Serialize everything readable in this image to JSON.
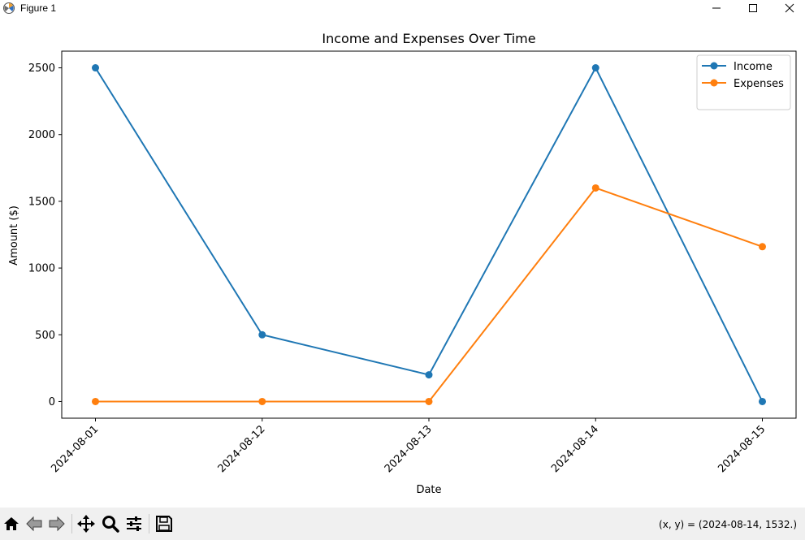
{
  "window": {
    "title": "Figure 1"
  },
  "chart_data": {
    "type": "line",
    "title": "Income and Expenses Over Time",
    "xlabel": "Date",
    "ylabel": "Amount ($)",
    "categories": [
      "2024-08-01",
      "2024-08-12",
      "2024-08-13",
      "2024-08-14",
      "2024-08-15"
    ],
    "series": [
      {
        "name": "Income",
        "values": [
          2500,
          500,
          200,
          2500,
          0
        ],
        "color": "#1f77b4",
        "marker": "circle"
      },
      {
        "name": "Expenses",
        "values": [
          0,
          0,
          0,
          1600,
          1160
        ],
        "color": "#ff7f0e",
        "marker": "circle"
      }
    ],
    "y_ticks": [
      0,
      500,
      1000,
      1500,
      2000,
      2500
    ],
    "ylim": [
      -125,
      2625
    ],
    "x_tick_rotation": 45,
    "grid": false,
    "legend": "top-right"
  },
  "toolbar": {
    "buttons": [
      "home-icon",
      "back-icon",
      "forward-icon",
      "pan-icon",
      "zoom-icon",
      "configure-subplots-icon",
      "save-icon"
    ],
    "coords": "(x, y) = (2024-08-14, 1532.)"
  }
}
